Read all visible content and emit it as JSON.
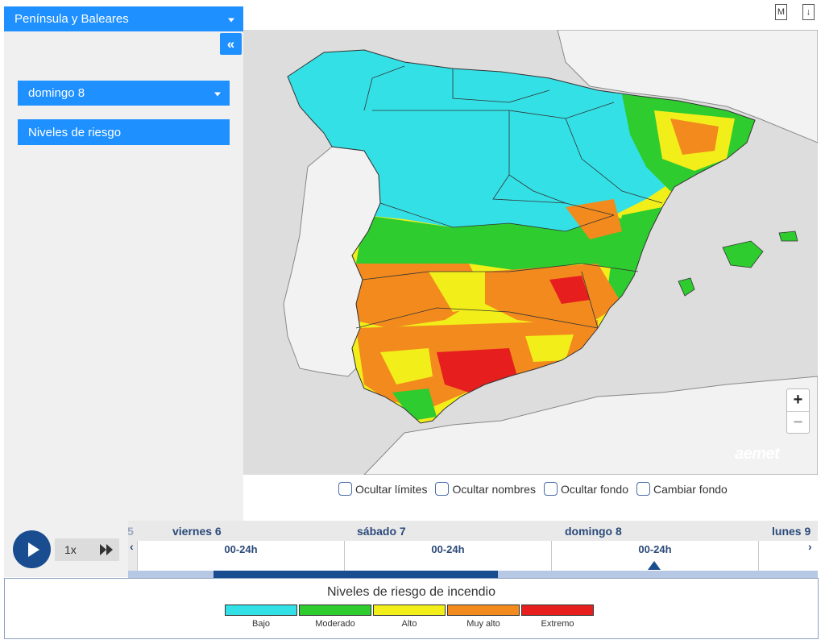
{
  "region_select": {
    "label": "Península y Baleares"
  },
  "collapse_button": {
    "label": "«"
  },
  "day_select": {
    "label": "domingo 8"
  },
  "layer_button": {
    "label": "Niveles de riesgo"
  },
  "top_icons": {
    "m_label": "M",
    "download_label": "↓"
  },
  "map": {
    "zoom_in": "+",
    "zoom_out": "−",
    "logo": "aemet",
    "sea_color": "#dddddd",
    "land_color": "#f2f2f2"
  },
  "options": [
    {
      "label": "Ocultar límites"
    },
    {
      "label": "Ocultar nombres"
    },
    {
      "label": "Ocultar fondo"
    },
    {
      "label": "Cambiar fondo"
    }
  ],
  "playback": {
    "speed": "1x"
  },
  "timeline": {
    "left_arrow": "‹",
    "right_arrow": "›",
    "prev_fragment": "5",
    "days": [
      {
        "name": "viernes 6",
        "slot": "00-24h"
      },
      {
        "name": "sábado 7",
        "slot": "00-24h"
      },
      {
        "name": "domingo 8",
        "slot": "00-24h"
      },
      {
        "name": "lunes 9",
        "slot": ""
      }
    ],
    "selected_day": "domingo 8"
  },
  "legend": {
    "title": "Niveles de riesgo de incendio",
    "items": [
      {
        "label": "Bajo",
        "color": "#33e0e6"
      },
      {
        "label": "Moderado",
        "color": "#2ecc2e"
      },
      {
        "label": "Alto",
        "color": "#f2ee1a"
      },
      {
        "label": "Muy alto",
        "color": "#f28a1e"
      },
      {
        "label": "Extremo",
        "color": "#e61e1e"
      }
    ]
  }
}
